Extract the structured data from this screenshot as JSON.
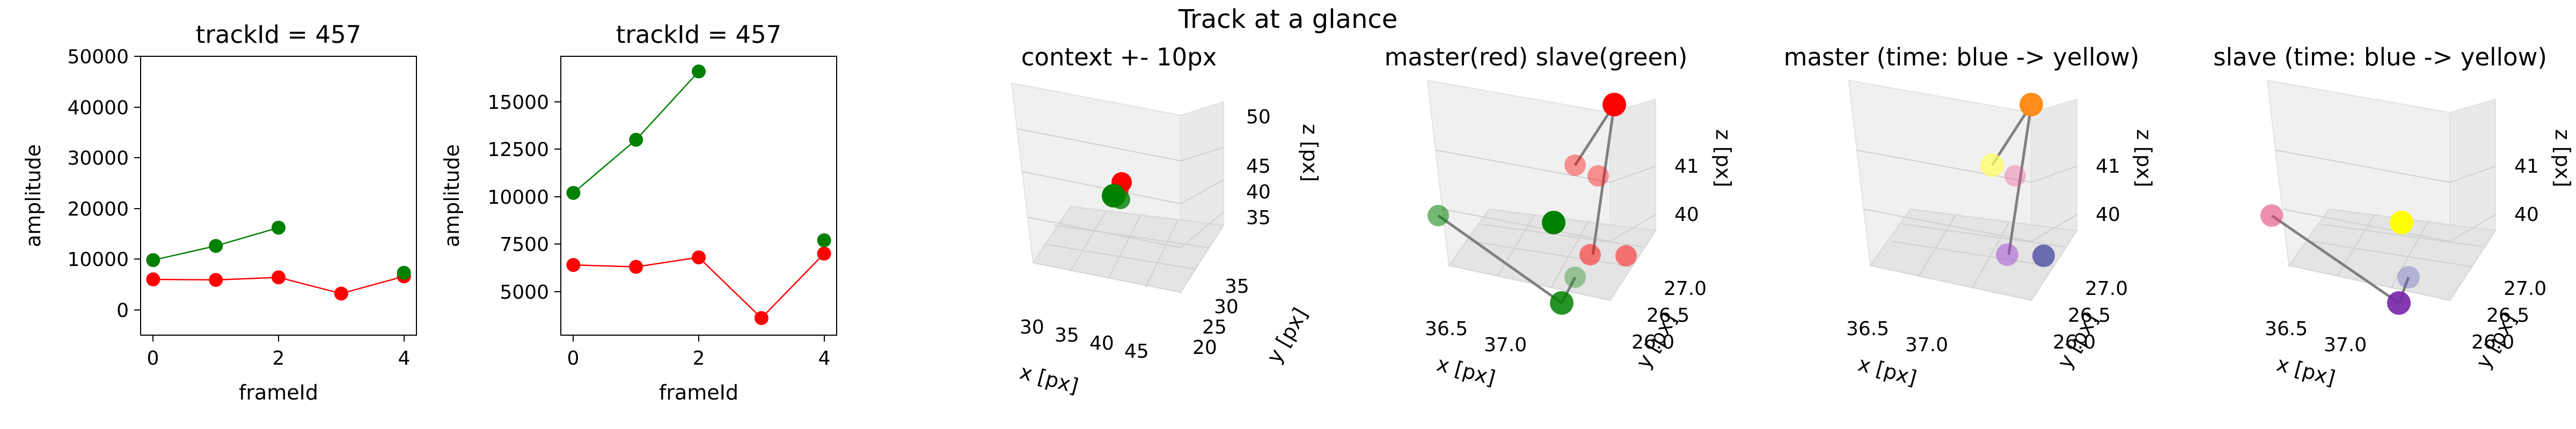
{
  "suptitle": "Track at a glance",
  "colors": {
    "master": "#ff0000",
    "slave": "#008000",
    "path": "#808080",
    "pane": "#f2f2f2",
    "grid": "#d0d0d0"
  },
  "chart_data": [
    {
      "type": "line",
      "title": "trackId = 457",
      "xlabel": "frameId",
      "ylabel": "amplitude",
      "xlim": [
        -0.2,
        4.2
      ],
      "ylim": [
        -5000,
        50000
      ],
      "xticks": [
        "0",
        "2",
        "4"
      ],
      "yticks": [
        "0",
        "10000",
        "20000",
        "30000",
        "40000",
        "50000"
      ],
      "series": [
        {
          "color": "#ff0000",
          "x": [
            0,
            1,
            2,
            3,
            4
          ],
          "y": [
            6000,
            5900,
            6400,
            3200,
            6600
          ]
        },
        {
          "color": "#008000",
          "x": [
            0,
            1,
            2,
            4
          ],
          "y": [
            9800,
            12600,
            16200,
            7300
          ]
        }
      ]
    },
    {
      "type": "line",
      "title": "trackId = 457",
      "xlabel": "frameId",
      "ylabel": "amplitude",
      "xlim": [
        -0.2,
        4.2
      ],
      "ylim": [
        2300,
        17000
      ],
      "xticks": [
        "0",
        "2",
        "4"
      ],
      "yticks": [
        "5000",
        "7500",
        "10000",
        "12500",
        "15000"
      ],
      "series": [
        {
          "color": "#ff0000",
          "x": [
            0,
            1,
            2,
            3,
            4
          ],
          "y": [
            6000,
            5900,
            6400,
            3200,
            6600
          ]
        },
        {
          "color": "#008000",
          "x": [
            0,
            1,
            2,
            4
          ],
          "y": [
            9800,
            12600,
            16200,
            7300
          ]
        }
      ]
    },
    {
      "type": "scatter3d",
      "title": "context +- 10px",
      "xlabel": "x [px]",
      "ylabel": "y [px]",
      "zlabel": "z [px]",
      "xticks": [
        "30",
        "35",
        "40",
        "45"
      ],
      "yticks": [
        "20",
        "25",
        "30",
        "35"
      ],
      "zticks": [
        "35",
        "40",
        "45",
        "50"
      ]
    },
    {
      "type": "scatter3d",
      "title": "master(red) slave(green)",
      "xlabel": "x [px]",
      "ylabel": "y [px]",
      "zlabel": "z [px]",
      "xticks": [
        "36.5",
        "37.0"
      ],
      "yticks": [
        "26.0",
        "26.5",
        "27.0"
      ],
      "zticks": [
        "40",
        "41"
      ]
    },
    {
      "type": "scatter3d",
      "title": "master (time: blue -> yellow)",
      "xlabel": "x [px]",
      "ylabel": "y [px]",
      "zlabel": "z [px]",
      "xticks": [
        "36.5",
        "37.0"
      ],
      "yticks": [
        "26.0",
        "26.5",
        "27.0"
      ],
      "zticks": [
        "40",
        "41"
      ]
    },
    {
      "type": "scatter3d",
      "title": "slave (time: blue -> yellow)",
      "xlabel": "x [px]",
      "ylabel": "y [px]",
      "zlabel": "z [px]",
      "xticks": [
        "36.5",
        "37.0"
      ],
      "yticks": [
        "26.0",
        "26.5",
        "27.0"
      ],
      "zticks": [
        "40",
        "41"
      ]
    }
  ]
}
